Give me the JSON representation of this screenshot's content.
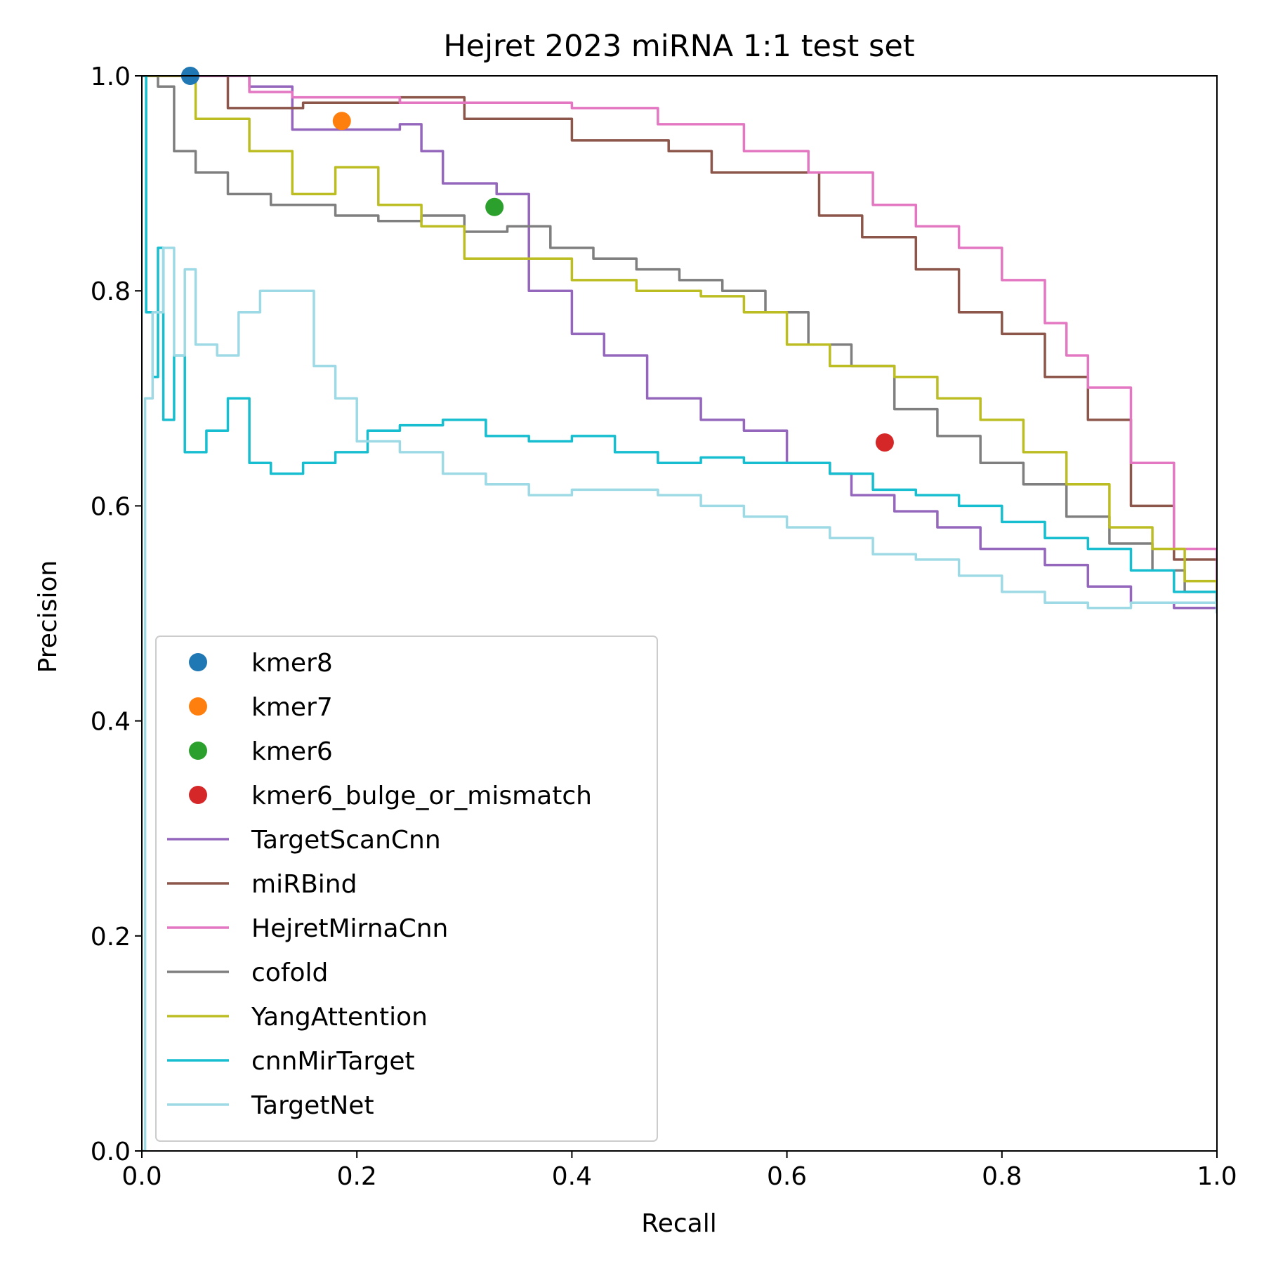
{
  "chart_data": {
    "type": "line",
    "title": "Hejret 2023 miRNA 1:1 test set",
    "xlabel": "Recall",
    "ylabel": "Precision",
    "xlim": [
      0.0,
      1.0
    ],
    "ylim": [
      0.0,
      1.0
    ],
    "xticks": [
      "0.0",
      "0.2",
      "0.4",
      "0.6",
      "0.8",
      "1.0"
    ],
    "yticks": [
      "0.0",
      "0.2",
      "0.4",
      "0.6",
      "0.8",
      "1.0"
    ],
    "grid": false,
    "legend_position": "lower-left",
    "points": [
      {
        "name": "kmer8",
        "color": "#1f77b4",
        "x": 0.045,
        "y": 1.0
      },
      {
        "name": "kmer7",
        "color": "#ff7f0e",
        "x": 0.186,
        "y": 0.958
      },
      {
        "name": "kmer6",
        "color": "#2ca02c",
        "x": 0.328,
        "y": 0.878
      },
      {
        "name": "kmer6_bulge_or_mismatch",
        "color": "#d62728",
        "x": 0.691,
        "y": 0.659
      }
    ],
    "series": [
      {
        "name": "TargetScanCnn",
        "color": "#9467bd",
        "x": [
          0.0,
          0.09,
          0.1,
          0.14,
          0.18,
          0.24,
          0.26,
          0.28,
          0.33,
          0.36,
          0.4,
          0.43,
          0.47,
          0.52,
          0.56,
          0.6,
          0.64,
          0.66,
          0.7,
          0.74,
          0.78,
          0.84,
          0.88,
          0.92,
          0.96,
          1.0
        ],
        "y": [
          1.0,
          1.0,
          0.99,
          0.95,
          0.95,
          0.955,
          0.93,
          0.9,
          0.89,
          0.8,
          0.76,
          0.74,
          0.7,
          0.68,
          0.67,
          0.64,
          0.63,
          0.61,
          0.595,
          0.58,
          0.56,
          0.545,
          0.525,
          0.51,
          0.505,
          0.5
        ]
      },
      {
        "name": "miRBind",
        "color": "#8c564b",
        "x": [
          0.0,
          0.07,
          0.08,
          0.15,
          0.24,
          0.3,
          0.4,
          0.49,
          0.53,
          0.59,
          0.63,
          0.67,
          0.72,
          0.76,
          0.8,
          0.84,
          0.88,
          0.92,
          0.96,
          1.0
        ],
        "y": [
          1.0,
          1.0,
          0.97,
          0.975,
          0.98,
          0.96,
          0.94,
          0.93,
          0.91,
          0.91,
          0.87,
          0.85,
          0.82,
          0.78,
          0.76,
          0.72,
          0.68,
          0.6,
          0.55,
          0.505
        ]
      },
      {
        "name": "HejretMirnaCnn",
        "color": "#e377c2",
        "x": [
          0.0,
          0.1,
          0.14,
          0.24,
          0.3,
          0.4,
          0.48,
          0.56,
          0.62,
          0.68,
          0.72,
          0.76,
          0.8,
          0.84,
          0.86,
          0.88,
          0.92,
          0.96,
          1.0
        ],
        "y": [
          1.0,
          0.985,
          0.98,
          0.975,
          0.975,
          0.97,
          0.955,
          0.93,
          0.91,
          0.88,
          0.86,
          0.84,
          0.81,
          0.77,
          0.74,
          0.71,
          0.64,
          0.56,
          0.505
        ]
      },
      {
        "name": "cofold",
        "color": "#7f7f7f",
        "x": [
          0.0,
          0.015,
          0.03,
          0.05,
          0.08,
          0.12,
          0.18,
          0.22,
          0.26,
          0.3,
          0.34,
          0.38,
          0.42,
          0.46,
          0.5,
          0.54,
          0.58,
          0.62,
          0.66,
          0.7,
          0.74,
          0.78,
          0.82,
          0.86,
          0.9,
          0.94,
          0.97,
          1.0
        ],
        "y": [
          1.0,
          0.99,
          0.93,
          0.91,
          0.89,
          0.88,
          0.87,
          0.865,
          0.87,
          0.855,
          0.86,
          0.84,
          0.83,
          0.82,
          0.81,
          0.8,
          0.78,
          0.75,
          0.73,
          0.69,
          0.665,
          0.64,
          0.62,
          0.59,
          0.565,
          0.54,
          0.52,
          0.505
        ]
      },
      {
        "name": "YangAttention",
        "color": "#bcbd22",
        "x": [
          0.0,
          0.045,
          0.05,
          0.1,
          0.14,
          0.18,
          0.22,
          0.26,
          0.3,
          0.34,
          0.4,
          0.46,
          0.52,
          0.56,
          0.6,
          0.64,
          0.7,
          0.74,
          0.78,
          0.82,
          0.86,
          0.9,
          0.94,
          0.97,
          1.0
        ],
        "y": [
          1.0,
          1.0,
          0.96,
          0.93,
          0.89,
          0.915,
          0.88,
          0.86,
          0.83,
          0.83,
          0.81,
          0.8,
          0.795,
          0.78,
          0.75,
          0.73,
          0.72,
          0.7,
          0.68,
          0.65,
          0.62,
          0.58,
          0.56,
          0.53,
          0.505
        ]
      },
      {
        "name": "cnnMirTarget",
        "color": "#17becf",
        "x": [
          0.0,
          0.004,
          0.01,
          0.015,
          0.02,
          0.03,
          0.04,
          0.06,
          0.08,
          0.1,
          0.12,
          0.15,
          0.18,
          0.21,
          0.24,
          0.28,
          0.32,
          0.36,
          0.4,
          0.44,
          0.48,
          0.52,
          0.56,
          0.6,
          0.64,
          0.68,
          0.72,
          0.76,
          0.8,
          0.84,
          0.88,
          0.92,
          0.96,
          1.0
        ],
        "y": [
          1.0,
          0.78,
          0.72,
          0.84,
          0.68,
          0.74,
          0.65,
          0.67,
          0.7,
          0.64,
          0.63,
          0.64,
          0.65,
          0.67,
          0.675,
          0.68,
          0.665,
          0.66,
          0.665,
          0.65,
          0.64,
          0.645,
          0.64,
          0.64,
          0.63,
          0.615,
          0.61,
          0.6,
          0.585,
          0.57,
          0.56,
          0.54,
          0.52,
          0.505
        ]
      },
      {
        "name": "TargetNet",
        "color": "#9edae5",
        "x": [
          0.0,
          0.003,
          0.01,
          0.02,
          0.03,
          0.04,
          0.05,
          0.07,
          0.09,
          0.11,
          0.13,
          0.16,
          0.18,
          0.2,
          0.24,
          0.28,
          0.32,
          0.36,
          0.4,
          0.44,
          0.48,
          0.52,
          0.56,
          0.6,
          0.64,
          0.68,
          0.72,
          0.76,
          0.8,
          0.84,
          0.88,
          0.92,
          0.96,
          1.0
        ],
        "y": [
          0.0,
          0.7,
          0.78,
          0.84,
          0.74,
          0.82,
          0.75,
          0.74,
          0.78,
          0.8,
          0.8,
          0.73,
          0.7,
          0.66,
          0.65,
          0.63,
          0.62,
          0.61,
          0.615,
          0.615,
          0.61,
          0.6,
          0.59,
          0.58,
          0.57,
          0.555,
          0.55,
          0.535,
          0.52,
          0.51,
          0.505,
          0.51,
          0.51,
          0.5
        ]
      }
    ]
  }
}
